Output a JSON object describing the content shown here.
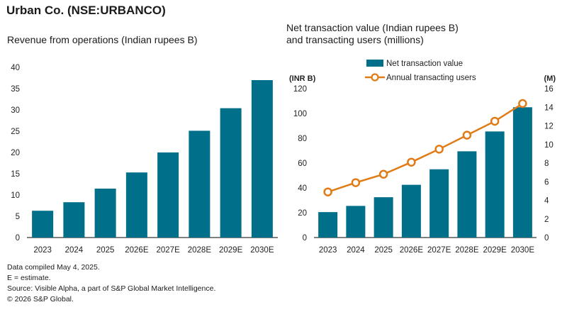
{
  "title": "Urban Co. (NSE:URBANCO)",
  "colors": {
    "bar": "#006f8a",
    "line": "#e07b16",
    "axis": "#555555",
    "grid": "#000000"
  },
  "chart_data": [
    {
      "type": "bar",
      "title": "Revenue from operations (Indian rupees B)",
      "categories": [
        "2023",
        "2024",
        "2025",
        "2026E",
        "2027E",
        "2028E",
        "2029E",
        "2030E"
      ],
      "values": [
        6.3,
        8.3,
        11.5,
        15.3,
        20,
        25.1,
        30.4,
        37
      ],
      "ylim": [
        0,
        40
      ],
      "yticks": [
        "0",
        "5",
        "10",
        "15",
        "20",
        "25",
        "30",
        "35",
        "40"
      ],
      "grid": false
    },
    {
      "type": "bar+line",
      "title_lines": [
        "Net transaction value (Indian rupees B)",
        "and transacting users (millions)"
      ],
      "categories": [
        "2023",
        "2024",
        "2025",
        "2026E",
        "2027E",
        "2028E",
        "2029E",
        "2030E"
      ],
      "left_axis_label": "(INR B)",
      "right_axis_label": "(M)",
      "left_ylim": [
        0,
        120
      ],
      "right_ylim": [
        0,
        16
      ],
      "left_yticks": [
        "0",
        "20",
        "40",
        "60",
        "80",
        "100",
        "120"
      ],
      "right_yticks": [
        "0",
        "2",
        "4",
        "6",
        "8",
        "10",
        "12",
        "14",
        "16"
      ],
      "legend_placement": "top-center",
      "series": [
        {
          "name": "Net transaction value",
          "type": "bar",
          "axis": "left",
          "values": [
            20.5,
            25.5,
            32.5,
            42.5,
            55,
            69.5,
            85.5,
            105
          ]
        },
        {
          "name": "Annual transacting users",
          "type": "line",
          "axis": "right",
          "values": [
            4.9,
            5.9,
            6.8,
            8.1,
            9.5,
            11,
            12.5,
            14.4
          ]
        }
      ]
    }
  ],
  "footer": [
    "Data compiled May 4, 2025.",
    "E = estimate.",
    "Source: Visible Alpha, a part of S&P Global Market Intelligence.",
    "© 2026 S&P Global."
  ]
}
